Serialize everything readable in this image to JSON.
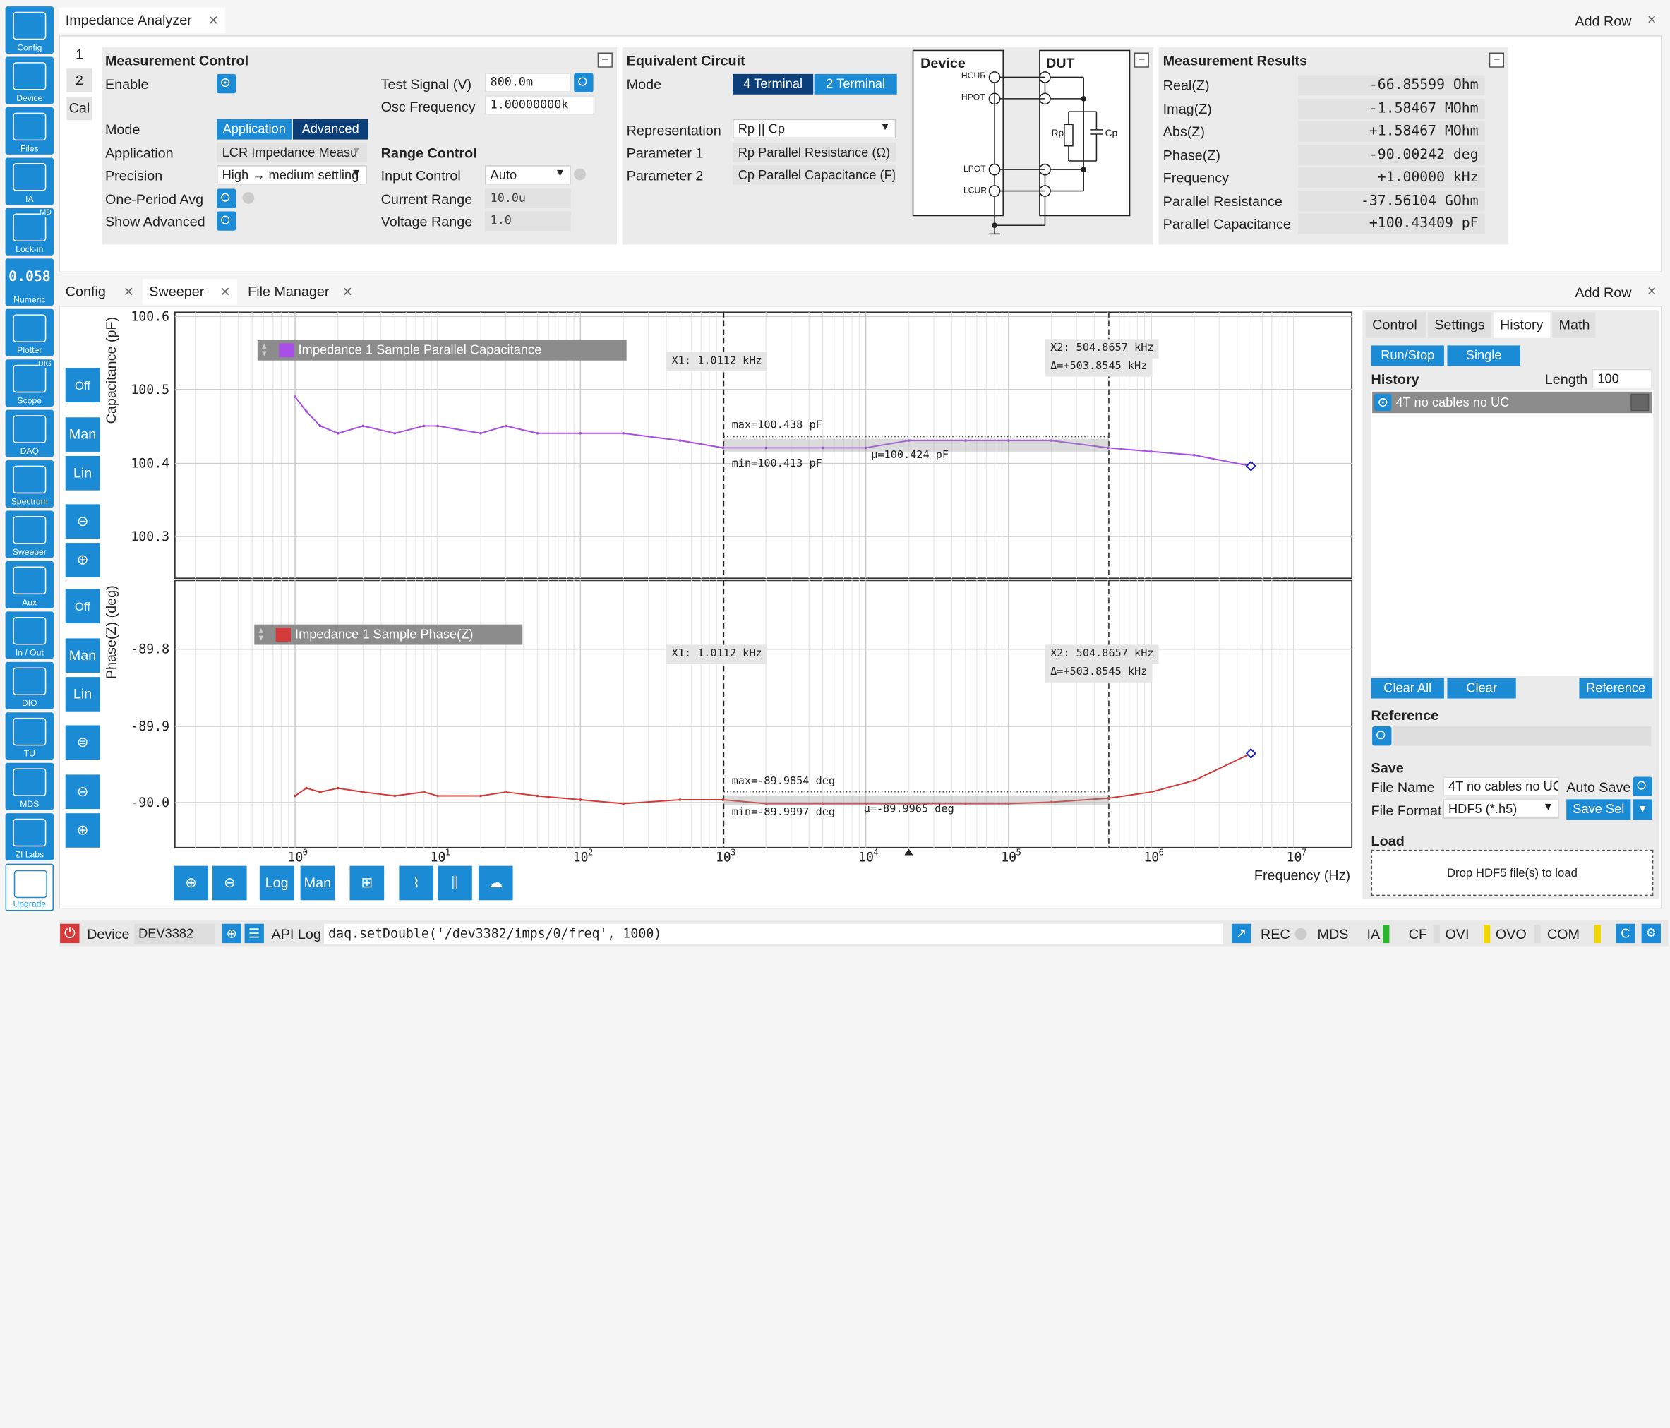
{
  "sidebar": [
    {
      "label": "Config",
      "icon": "gear-icon"
    },
    {
      "label": "Device",
      "icon": "device-icon"
    },
    {
      "label": "Files",
      "icon": "folder-icon"
    },
    {
      "label": "IA",
      "icon": "impedance-icon"
    },
    {
      "label": "Lock-in",
      "icon": "lockin-icon",
      "badge": "MD"
    },
    {
      "label": "Numeric",
      "icon": "numeric-icon",
      "text": "0.058"
    },
    {
      "label": "Plotter",
      "icon": "plotter-icon"
    },
    {
      "label": "Scope",
      "icon": "scope-icon",
      "badge": "DIG"
    },
    {
      "label": "DAQ",
      "icon": "daq-icon"
    },
    {
      "label": "Spectrum",
      "icon": "spectrum-icon"
    },
    {
      "label": "Sweeper",
      "icon": "sweeper-icon"
    },
    {
      "label": "Aux",
      "icon": "aux-icon"
    },
    {
      "label": "In / Out",
      "icon": "inout-icon"
    },
    {
      "label": "DIO",
      "icon": "dio-icon"
    },
    {
      "label": "TU",
      "icon": "tu-icon"
    },
    {
      "label": "MDS",
      "icon": "mds-icon"
    },
    {
      "label": "ZI Labs",
      "icon": "flask-icon"
    },
    {
      "label": "Upgrade",
      "icon": "upgrade-icon"
    }
  ],
  "top": {
    "tab": "Impedance Analyzer",
    "add_row": "Add Row",
    "side_tabs": [
      "1",
      "2",
      "Cal"
    ]
  },
  "mc": {
    "title": "Measurement Control",
    "enable": "Enable",
    "mode": "Mode",
    "mode_opts": [
      "Application",
      "Advanced"
    ],
    "application": "Application",
    "app_val": "LCR Impedance Measu",
    "precision": "Precision",
    "prec_val": "High → medium settling",
    "one_period": "One-Period Avg",
    "show_adv": "Show Advanced",
    "test_signal": "Test Signal (V)",
    "test_val": "800.0m",
    "osc": "Osc Frequency",
    "osc_val": "1.00000000k",
    "range_ctrl": "Range Control",
    "input_ctrl": "Input Control",
    "input_val": "Auto",
    "cur_range": "Current Range",
    "cur_val": "10.0u",
    "volt_range": "Voltage Range",
    "volt_val": "1.0"
  },
  "ec": {
    "title": "Equivalent Circuit",
    "mode": "Mode",
    "mode_opts": [
      "4 Terminal",
      "2 Terminal"
    ],
    "rep": "Representation",
    "rep_val": "Rp || Cp",
    "p1": "Parameter 1",
    "p1_val": "Rp Parallel Resistance (Ω)",
    "p2": "Parameter 2",
    "p2_val": "Cp Parallel Capacitance (F)",
    "device": "Device",
    "dut": "DUT",
    "hcur": "HCUR",
    "hpot": "HPOT",
    "lpot": "LPOT",
    "lcur": "LCUR",
    "rp": "Rp",
    "cp": "Cp"
  },
  "mr": {
    "title": "Measurement Results",
    "rows": [
      {
        "label": "Real(Z)",
        "value": "-66.85599  Ohm"
      },
      {
        "label": "Imag(Z)",
        "value": "-1.58467 MOhm"
      },
      {
        "label": "Abs(Z)",
        "value": "+1.58467 MOhm"
      },
      {
        "label": "Phase(Z)",
        "value": "-90.00242  deg"
      },
      {
        "label": "Frequency",
        "value": "+1.00000 kHz"
      },
      {
        "label": "Parallel Resistance",
        "value": "-37.56104 GOhm"
      },
      {
        "label": "Parallel Capacitance",
        "value": "+100.43409 pF"
      }
    ]
  },
  "lower": {
    "tabs": [
      "Config",
      "Sweeper",
      "File Manager"
    ],
    "add_row": "Add Row"
  },
  "toolbar": {
    "off": "Off",
    "man": "Man",
    "lin": "Lin",
    "log": "Log"
  },
  "plot1": {
    "ylabel": "Capacitance (pF)",
    "legend": "Impedance 1 Sample Parallel Capacitance",
    "color": "#a64ee6",
    "ticks": [
      "100.6",
      "100.5",
      "100.4",
      "100.3"
    ],
    "x1": "X1: 1.0112 kHz",
    "x2": "X2: 504.8657 kHz",
    "delta": "Δ=+503.8545 kHz",
    "max": "max=100.438 pF",
    "min": "min=100.413 pF",
    "mu": "μ=100.424 pF"
  },
  "plot2": {
    "ylabel": "Phase(Z) (deg)",
    "legend": "Impedance 1 Sample Phase(Z)",
    "color": "#d43a3a",
    "ticks": [
      "-89.8",
      "-89.9",
      "-90.0"
    ],
    "x1": "X1: 1.0112 kHz",
    "x2": "X2: 504.8657 kHz",
    "delta": "Δ=+503.8545 kHz",
    "max": "max=-89.9854 deg",
    "min": "min=-89.9997 deg",
    "mu": "μ=-89.9965 deg"
  },
  "xaxis": {
    "label": "Frequency (Hz)",
    "ticks": [
      "10",
      "10",
      "10",
      "10",
      "10",
      "10",
      "10"
    ],
    "exps": [
      "0",
      "1",
      "2",
      "3",
      "4",
      "5",
      "6",
      "7"
    ]
  },
  "right": {
    "tabs": [
      "Control",
      "Settings",
      "History",
      "Math"
    ],
    "run": "Run/Stop",
    "single": "Single",
    "history": "History",
    "length": "Length",
    "length_val": "100",
    "entry": "4T no cables no UC",
    "clear_all": "Clear All",
    "clear": "Clear",
    "reference_btn": "Reference",
    "reference": "Reference",
    "save": "Save",
    "file_name": "File Name",
    "fname_val": "4T no cables no UC",
    "auto_save": "Auto Save",
    "file_format": "File Format",
    "fmt_val": "HDF5 (*.h5)",
    "save_sel": "Save Sel",
    "load": "Load",
    "drop": "Drop HDF5 file(s) to load"
  },
  "status": {
    "device": "Device",
    "device_val": "DEV3382",
    "api_log": "API Log",
    "cmd": "daq.setDouble('/dev3382/imps/0/freq', 1000)",
    "rec": "REC",
    "mds": "MDS",
    "ia": "IA",
    "cf": "CF",
    "ovi": "OVI",
    "ovo": "OVO",
    "com": "COM",
    "c": "C"
  },
  "chart_data": [
    {
      "type": "line",
      "title": "Impedance 1 Sample Parallel Capacitance",
      "ylabel": "Capacitance (pF)",
      "xlabel": "Frequency (Hz)",
      "xscale": "log",
      "xlim": [
        1,
        10000000
      ],
      "ylim": [
        100.25,
        100.6
      ],
      "series": [
        {
          "name": "Impedance 1 Sample Parallel Capacitance",
          "x": [
            1,
            1.2,
            1.5,
            2,
            3,
            5,
            8,
            10,
            20,
            30,
            50,
            100,
            200,
            500,
            1000,
            2000,
            5000,
            10000,
            20000,
            50000,
            100000,
            200000,
            500000,
            1000000,
            2000000,
            5000000
          ],
          "y": [
            100.49,
            100.47,
            100.45,
            100.44,
            100.45,
            100.44,
            100.45,
            100.45,
            100.44,
            100.45,
            100.44,
            100.44,
            100.44,
            100.43,
            100.42,
            100.42,
            100.42,
            100.42,
            100.43,
            100.43,
            100.43,
            100.43,
            100.42,
            100.415,
            100.41,
            100.395
          ]
        }
      ]
    },
    {
      "type": "line",
      "title": "Impedance 1 Sample Phase(Z)",
      "ylabel": "Phase(Z) (deg)",
      "xlabel": "Frequency (Hz)",
      "xscale": "log",
      "xlim": [
        1,
        10000000
      ],
      "ylim": [
        -90.06,
        -89.75
      ],
      "series": [
        {
          "name": "Impedance 1 Sample Phase(Z)",
          "x": [
            1,
            1.2,
            1.5,
            2,
            3,
            5,
            8,
            10,
            20,
            30,
            50,
            100,
            200,
            500,
            1000,
            2000,
            5000,
            10000,
            20000,
            50000,
            100000,
            200000,
            500000,
            1000000,
            2000000,
            5000000
          ],
          "y": [
            -89.99,
            -89.98,
            -89.985,
            -89.98,
            -89.985,
            -89.99,
            -89.985,
            -89.99,
            -89.99,
            -89.985,
            -89.99,
            -89.995,
            -90.0,
            -89.995,
            -89.995,
            -90.0,
            -90.0,
            -90.0,
            -90.0,
            -90.0,
            -90.0,
            -89.998,
            -89.993,
            -89.985,
            -89.97,
            -89.935
          ]
        }
      ]
    }
  ]
}
